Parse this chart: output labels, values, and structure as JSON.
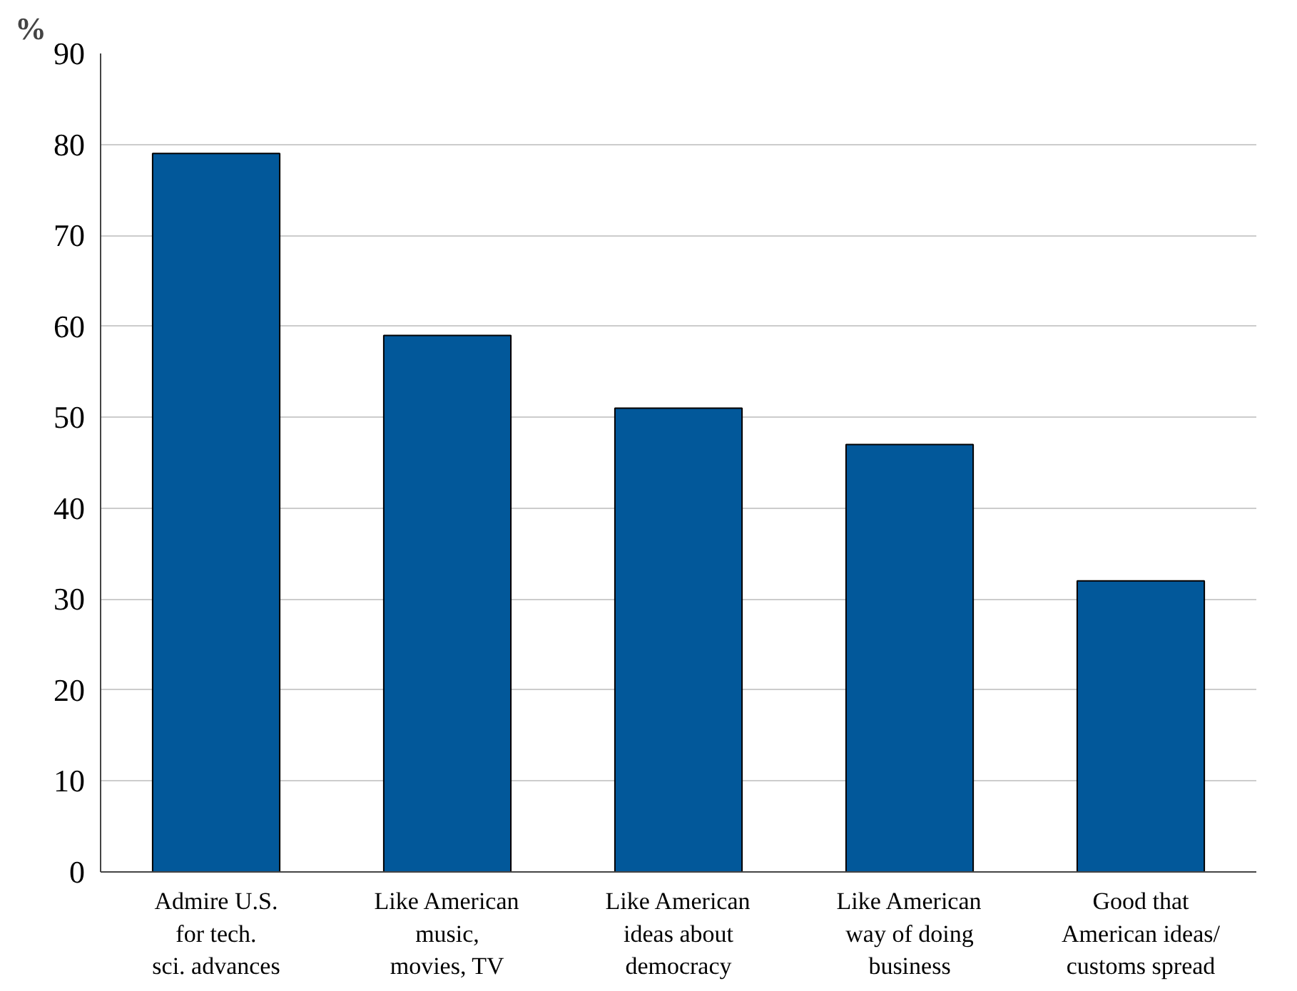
{
  "chart_data": {
    "type": "bar",
    "ylabel": "%",
    "categories": [
      "Admire U.S.\nfor tech.\nsci. advances",
      "Like American\nmusic,\nmovies, TV",
      "Like American\nideas about\ndemocracy",
      "Like American\nway of doing\nbusiness",
      "Good that\nAmerican ideas/\ncustoms spread"
    ],
    "values": [
      79,
      59,
      51,
      47,
      32
    ],
    "color": "#02589a",
    "ylim": [
      0,
      90
    ],
    "yticks": [
      0,
      10,
      20,
      30,
      40,
      50,
      60,
      70,
      80,
      90
    ],
    "grid": "y"
  }
}
